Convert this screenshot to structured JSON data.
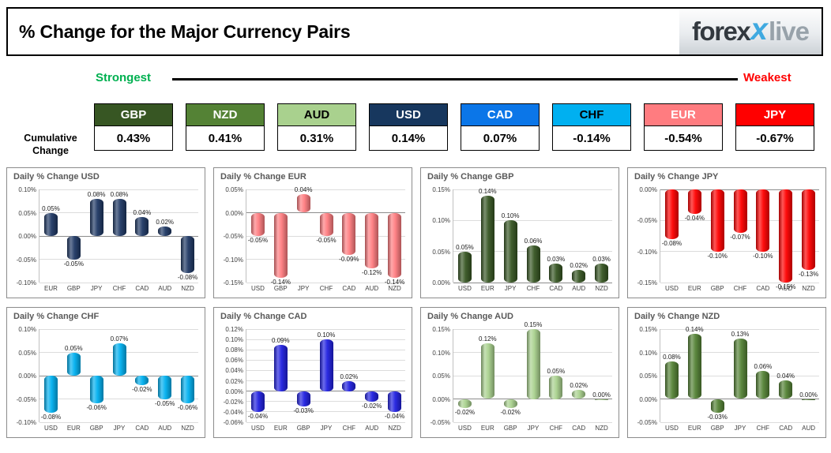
{
  "header": {
    "title": "% Change for the Major Currency Pairs",
    "logo": {
      "forex": "forex",
      "x": "x",
      "live": "live"
    }
  },
  "scale_bar": {
    "strongest_label": "Strongest",
    "weakest_label": "Weakest"
  },
  "cumulative": {
    "label_line1": "Cumulative",
    "label_line2": "Change",
    "tiles": [
      {
        "code": "GBP",
        "value": "0.43%",
        "color": "#375623",
        "text_color": "#ffffff"
      },
      {
        "code": "NZD",
        "value": "0.41%",
        "color": "#548235",
        "text_color": "#ffffff"
      },
      {
        "code": "AUD",
        "value": "0.31%",
        "color": "#A9D18E",
        "text_color": "#000000"
      },
      {
        "code": "USD",
        "value": "0.14%",
        "color": "#17375E",
        "text_color": "#ffffff"
      },
      {
        "code": "CAD",
        "value": "0.07%",
        "color": "#0B76E8",
        "text_color": "#ffffff"
      },
      {
        "code": "CHF",
        "value": "-0.14%",
        "color": "#00B0F0",
        "text_color": "#000000"
      },
      {
        "code": "EUR",
        "value": "-0.54%",
        "color": "#FF7C80",
        "text_color": "#ffffff"
      },
      {
        "code": "JPY",
        "value": "-0.67%",
        "color": "#FF0000",
        "text_color": "#ffffff"
      }
    ]
  },
  "chart_data": [
    {
      "type": "bar",
      "title": "Daily % Change USD",
      "color": "#1F3864",
      "ylim": [
        -0.1,
        0.1
      ],
      "ystep": 0.05,
      "categories": [
        "EUR",
        "GBP",
        "JPY",
        "CHF",
        "CAD",
        "AUD",
        "NZD"
      ],
      "values": [
        0.05,
        -0.05,
        0.08,
        0.08,
        0.04,
        0.02,
        -0.08
      ]
    },
    {
      "type": "bar",
      "title": "Daily % Change EUR",
      "color": "#FF7C80",
      "ylim": [
        -0.15,
        0.05
      ],
      "ystep": 0.05,
      "categories": [
        "USD",
        "GBP",
        "JPY",
        "CHF",
        "CAD",
        "AUD",
        "NZD"
      ],
      "values": [
        -0.05,
        -0.14,
        0.04,
        -0.05,
        -0.09,
        -0.12,
        -0.14
      ]
    },
    {
      "type": "bar",
      "title": "Daily % Change GBP",
      "color": "#375623",
      "ylim": [
        0,
        0.15
      ],
      "ystep": 0.05,
      "categories": [
        "USD",
        "EUR",
        "JPY",
        "CHF",
        "CAD",
        "AUD",
        "NZD"
      ],
      "values": [
        0.05,
        0.14,
        0.1,
        0.06,
        0.03,
        0.02,
        0.03
      ]
    },
    {
      "type": "bar",
      "title": "Daily % Change JPY",
      "color": "#FF0000",
      "ylim": [
        -0.15,
        0
      ],
      "ystep": 0.05,
      "categories": [
        "USD",
        "EUR",
        "GBP",
        "CHF",
        "CAD",
        "AUD",
        "NZD"
      ],
      "values": [
        -0.08,
        -0.04,
        -0.1,
        -0.07,
        -0.1,
        -0.15,
        -0.13
      ]
    },
    {
      "type": "bar",
      "title": "Daily % Change CHF",
      "color": "#00B0F0",
      "ylim": [
        -0.1,
        0.1
      ],
      "ystep": 0.05,
      "categories": [
        "USD",
        "EUR",
        "GBP",
        "JPY",
        "CAD",
        "AUD",
        "NZD"
      ],
      "values": [
        -0.08,
        0.05,
        -0.06,
        0.07,
        -0.02,
        -0.05,
        -0.06
      ]
    },
    {
      "type": "bar",
      "title": "Daily % Change CAD",
      "color": "#2020E0",
      "ylim": [
        -0.06,
        0.12
      ],
      "ystep": 0.02,
      "categories": [
        "USD",
        "EUR",
        "GBP",
        "JPY",
        "CHF",
        "AUD",
        "NZD"
      ],
      "values": [
        -0.04,
        0.09,
        -0.03,
        0.1,
        0.02,
        -0.02,
        -0.04
      ]
    },
    {
      "type": "bar",
      "title": "Daily % Change AUD",
      "color": "#A9D18E",
      "ylim": [
        -0.05,
        0.15
      ],
      "ystep": 0.05,
      "categories": [
        "USD",
        "EUR",
        "GBP",
        "JPY",
        "CHF",
        "CAD",
        "NZD"
      ],
      "values": [
        -0.02,
        0.12,
        -0.02,
        0.15,
        0.05,
        0.02,
        0.0
      ]
    },
    {
      "type": "bar",
      "title": "Daily % Change NZD",
      "color": "#548235",
      "ylim": [
        -0.05,
        0.15
      ],
      "ystep": 0.05,
      "categories": [
        "USD",
        "EUR",
        "GBP",
        "JPY",
        "CHF",
        "CAD",
        "AUD"
      ],
      "values": [
        0.08,
        0.14,
        -0.03,
        0.13,
        0.06,
        0.04,
        0.0
      ]
    }
  ]
}
